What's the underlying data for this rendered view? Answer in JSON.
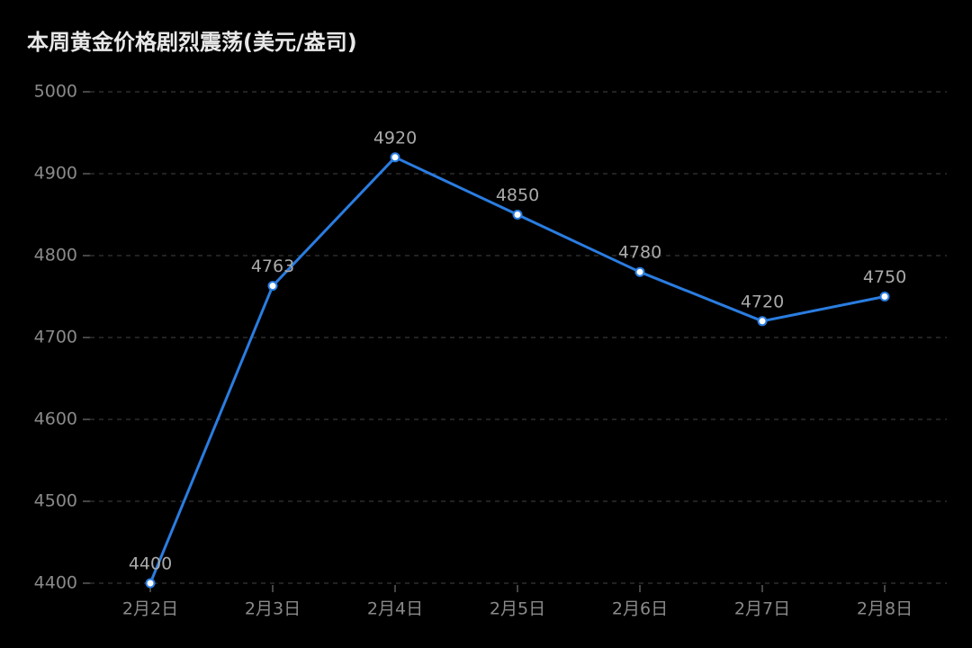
{
  "chart_data": {
    "type": "line",
    "title": "本周黄金价格剧烈震荡(美元/盎司)",
    "categories": [
      "2月2日",
      "2月3日",
      "2月4日",
      "2月5日",
      "2月6日",
      "2月7日",
      "2月8日"
    ],
    "series": [
      {
        "color": "#2a7de1",
        "values": [
          4400,
          4763,
          4920,
          4850,
          4780,
          4720,
          4750
        ]
      }
    ],
    "ylim": [
      4400,
      5000
    ],
    "yticks": [
      4400,
      4500,
      4600,
      4700,
      4800,
      4900,
      5000
    ],
    "grid": true
  }
}
